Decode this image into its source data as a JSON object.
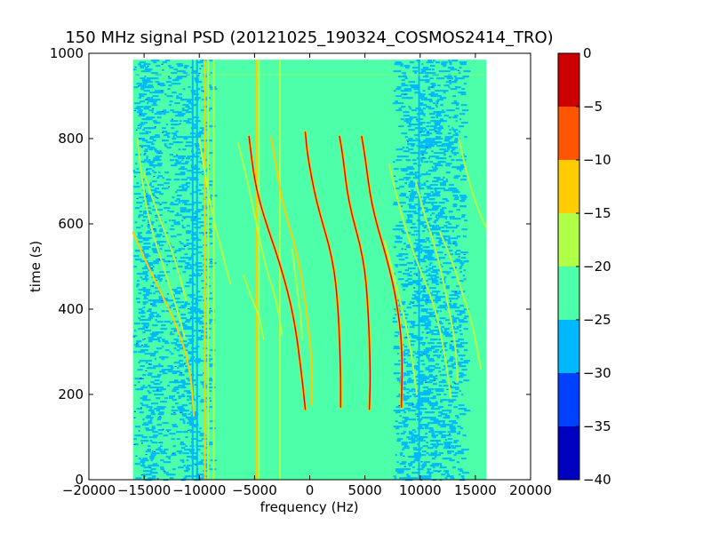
{
  "chart_data": {
    "type": "heatmap",
    "title": "150 MHz signal PSD (20121025_190324_COSMOS2414_TRO)",
    "xlabel": "frequency (Hz)",
    "ylabel": "time (s)",
    "xlim": [
      -20000,
      20000
    ],
    "ylim": [
      0,
      1000
    ],
    "x_ticks": [
      -20000,
      -15000,
      -10000,
      -5000,
      0,
      5000,
      10000,
      15000,
      20000
    ],
    "x_tick_labels": [
      "−20000",
      "−15000",
      "−10000",
      "−5000",
      "0",
      "5000",
      "10000",
      "15000",
      "20000"
    ],
    "y_ticks": [
      0,
      200,
      400,
      600,
      800,
      1000
    ],
    "y_tick_labels": [
      "0",
      "200",
      "400",
      "600",
      "800",
      "1000"
    ],
    "data_extent": {
      "x": [
        -16000,
        16000
      ],
      "y": [
        0,
        985
      ]
    },
    "colorbar": {
      "range": [
        -40,
        0
      ],
      "ticks": [
        0,
        -5,
        -10,
        -15,
        -20,
        -25,
        -30,
        -35,
        -40
      ],
      "tick_labels": [
        "0",
        "−5",
        "−10",
        "−15",
        "−20",
        "−25",
        "−30",
        "−35",
        "−40"
      ],
      "levels": [
        {
          "from": -40,
          "to": -35,
          "color": "#0000c0"
        },
        {
          "from": -35,
          "to": -30,
          "color": "#0040ff"
        },
        {
          "from": -30,
          "to": -25,
          "color": "#00b8ff"
        },
        {
          "from": -25,
          "to": -20,
          "color": "#4cffa8"
        },
        {
          "from": -20,
          "to": -15,
          "color": "#b0ff48"
        },
        {
          "from": -15,
          "to": -10,
          "color": "#ffcc00"
        },
        {
          "from": -10,
          "to": -5,
          "color": "#ff5500"
        },
        {
          "from": -5,
          "to": 0,
          "color": "#cc0000"
        }
      ]
    },
    "background_level_color": "#4cffa8",
    "noise_band_color": "#00b8ff",
    "noise_bands": [
      {
        "x": [
          -16000,
          -13500
        ]
      },
      {
        "x": [
          -13500,
          -9000
        ]
      },
      {
        "x": [
          7500,
          14000
        ]
      }
    ],
    "vertical_lines": [
      {
        "x": -10600,
        "color": "#00b8ff"
      },
      {
        "x": -10200,
        "color": "#00b8ff"
      },
      {
        "x": -9500,
        "color": "#ffcc00"
      },
      {
        "x": -9200,
        "color": "#b0ff48"
      },
      {
        "x": -8700,
        "color": "#b0ff48"
      },
      {
        "x": -4800,
        "color": "#ffcc00"
      },
      {
        "x": -4600,
        "color": "#b0ff48"
      },
      {
        "x": -2700,
        "color": "#b0ff48"
      },
      {
        "x": 9900,
        "color": "#00b8ff"
      }
    ],
    "traces": [
      {
        "color": "#cc0000",
        "points": [
          [
            -5500,
            805
          ],
          [
            -5000,
            700
          ],
          [
            -4200,
            620
          ],
          [
            -2600,
            500
          ],
          [
            -1400,
            380
          ],
          [
            -700,
            240
          ],
          [
            -400,
            165
          ]
        ]
      },
      {
        "color": "#cc0000",
        "points": [
          [
            -400,
            815
          ],
          [
            -200,
            760
          ],
          [
            600,
            650
          ],
          [
            2100,
            520
          ],
          [
            2600,
            400
          ],
          [
            2800,
            250
          ],
          [
            2800,
            170
          ]
        ]
      },
      {
        "color": "#cc0000",
        "points": [
          [
            2700,
            805
          ],
          [
            3000,
            760
          ],
          [
            3500,
            650
          ],
          [
            4900,
            520
          ],
          [
            5300,
            400
          ],
          [
            5500,
            250
          ],
          [
            5400,
            165
          ]
        ]
      },
      {
        "color": "#cc0000",
        "points": [
          [
            4700,
            805
          ],
          [
            5000,
            760
          ],
          [
            5600,
            640
          ],
          [
            7200,
            500
          ],
          [
            8000,
            400
          ],
          [
            8400,
            300
          ],
          [
            8300,
            170
          ]
        ]
      },
      {
        "color": "#ffcc00",
        "points": [
          [
            -3500,
            805
          ],
          [
            -3200,
            760
          ],
          [
            -2500,
            650
          ],
          [
            -1000,
            520
          ],
          [
            -300,
            400
          ],
          [
            200,
            280
          ],
          [
            200,
            175
          ]
        ]
      },
      {
        "color": "#ffcc00",
        "points": [
          [
            -16000,
            580
          ],
          [
            -15000,
            520
          ],
          [
            -13500,
            440
          ],
          [
            -12000,
            360
          ],
          [
            -10800,
            260
          ],
          [
            -10500,
            150
          ]
        ]
      },
      {
        "color": "#b0ff48",
        "points": [
          [
            -15600,
            800
          ],
          [
            -15200,
            700
          ],
          [
            -14500,
            600
          ],
          [
            -13000,
            480
          ],
          [
            -12000,
            400
          ],
          [
            -11300,
            330
          ]
        ]
      },
      {
        "color": "#b0ff48",
        "points": [
          [
            -15000,
            720
          ],
          [
            -14000,
            640
          ],
          [
            -12800,
            560
          ],
          [
            -12000,
            500
          ],
          [
            -11200,
            420
          ]
        ]
      },
      {
        "color": "#b0ff48",
        "points": [
          [
            -10000,
            800
          ],
          [
            -9500,
            720
          ],
          [
            -8800,
            620
          ],
          [
            -8000,
            540
          ],
          [
            -7200,
            460
          ]
        ]
      },
      {
        "color": "#b0ff48",
        "points": [
          [
            -6500,
            790
          ],
          [
            -5800,
            720
          ],
          [
            -5000,
            620
          ],
          [
            -4000,
            500
          ],
          [
            -3000,
            420
          ],
          [
            -2500,
            340
          ]
        ]
      },
      {
        "color": "#b0ff48",
        "points": [
          [
            -1600,
            540
          ],
          [
            -1200,
            460
          ],
          [
            -800,
            380
          ],
          [
            -700,
            330
          ]
        ]
      },
      {
        "color": "#b0ff48",
        "points": [
          [
            -6000,
            480
          ],
          [
            -5200,
            420
          ],
          [
            -4500,
            380
          ],
          [
            -4200,
            330
          ]
        ]
      },
      {
        "color": "#b0ff48",
        "points": [
          [
            7200,
            740
          ],
          [
            7900,
            660
          ],
          [
            9000,
            560
          ],
          [
            10200,
            480
          ],
          [
            11400,
            400
          ],
          [
            12200,
            300
          ],
          [
            12800,
            190
          ]
        ]
      },
      {
        "color": "#b0ff48",
        "points": [
          [
            6800,
            560
          ],
          [
            7400,
            500
          ],
          [
            8400,
            400
          ],
          [
            9200,
            300
          ],
          [
            9700,
            200
          ]
        ]
      },
      {
        "color": "#b0ff48",
        "points": [
          [
            9600,
            700
          ],
          [
            10400,
            620
          ],
          [
            11200,
            560
          ],
          [
            12000,
            480
          ],
          [
            12600,
            400
          ],
          [
            13200,
            320
          ],
          [
            13400,
            230
          ]
        ]
      },
      {
        "color": "#b0ff48",
        "points": [
          [
            13500,
            800
          ],
          [
            14200,
            720
          ],
          [
            15000,
            650
          ],
          [
            15800,
            600
          ],
          [
            16000,
            590
          ]
        ]
      },
      {
        "color": "#b0ff48",
        "points": [
          [
            11800,
            580
          ],
          [
            12800,
            520
          ],
          [
            13800,
            440
          ],
          [
            14800,
            360
          ],
          [
            15500,
            260
          ]
        ]
      }
    ]
  }
}
